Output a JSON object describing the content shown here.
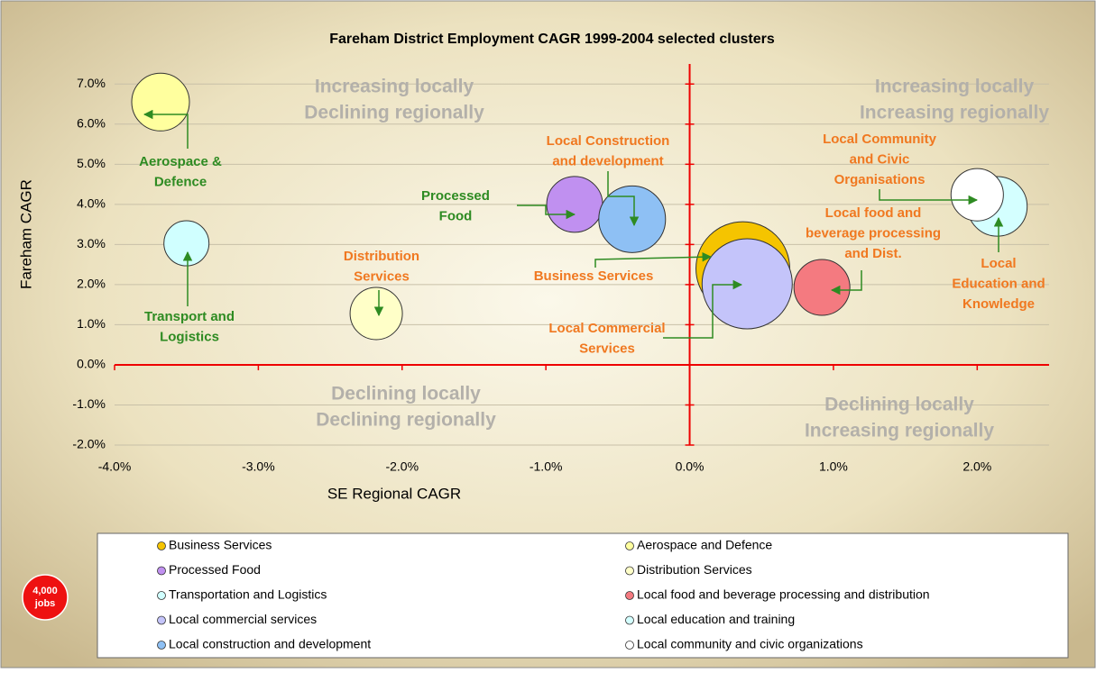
{
  "chart_data": {
    "type": "bubble",
    "title": "Fareham District Employment CAGR 1999-2004 selected clusters",
    "x_label": "SE Regional CAGR",
    "y_label": "Fareham CAGR",
    "xlim": [
      -4,
      2.5
    ],
    "ylim": [
      -2,
      7.5
    ],
    "xticks": [
      {
        "value": -4,
        "label": "-4.0%"
      },
      {
        "value": -3,
        "label": "-3.0%"
      },
      {
        "value": -2,
        "label": "-2.0%"
      },
      {
        "value": -1,
        "label": "-1.0%"
      },
      {
        "value": 0,
        "label": "0.0%"
      },
      {
        "value": 1,
        "label": "1.0%"
      },
      {
        "value": 2,
        "label": "2.0%"
      }
    ],
    "yticks": [
      {
        "value": -2,
        "label": "-2.0%"
      },
      {
        "value": -1,
        "label": "-1.0%"
      },
      {
        "value": 0,
        "label": "0.0%"
      },
      {
        "value": 1,
        "label": "1.0%"
      },
      {
        "value": 2,
        "label": "2.0%"
      },
      {
        "value": 3,
        "label": "3.0%"
      },
      {
        "value": 4,
        "label": "4.0%"
      },
      {
        "value": 5,
        "label": "5.0%"
      },
      {
        "value": 6,
        "label": "6.0%"
      },
      {
        "value": 7,
        "label": "7.0%"
      }
    ],
    "grid": true,
    "size_key": {
      "value": 4000,
      "label": "4,000",
      "unit": "jobs",
      "color": "#ee1111"
    },
    "series": [
      {
        "name": "Business Services",
        "color": "#f5c400",
        "x": [
          0.37
        ],
        "values": [
          2.4
        ],
        "sizes": [
          17300
        ]
      },
      {
        "name": "Aerospace and Defence",
        "color": "#ffff9e",
        "x": [
          -3.68
        ],
        "values": [
          6.55
        ],
        "sizes": [
          6550
        ]
      },
      {
        "name": "Processed Food",
        "color": "#c090f0",
        "x": [
          -0.8
        ],
        "values": [
          4.0
        ],
        "sizes": [
          6150
        ]
      },
      {
        "name": "Distribution Services",
        "color": "#ffffc8",
        "x": [
          -2.18
        ],
        "values": [
          1.28
        ],
        "sizes": [
          5380
        ]
      },
      {
        "name": "Transportation and Logistics",
        "color": "#d0ffff",
        "x": [
          -3.5
        ],
        "values": [
          3.03
        ],
        "sizes": [
          4000
        ]
      },
      {
        "name": "Local food and beverage processing and distribution",
        "color": "#f47a80",
        "x": [
          0.92
        ],
        "values": [
          1.93
        ],
        "sizes": [
          6150
        ]
      },
      {
        "name": "Local commercial services",
        "color": "#c4c4fa",
        "x": [
          0.4
        ],
        "values": [
          2.02
        ],
        "sizes": [
          16000
        ]
      },
      {
        "name": "Local education and training",
        "color": "#d4ffff",
        "x": [
          2.14
        ],
        "values": [
          3.95
        ],
        "sizes": [
          7000
        ]
      },
      {
        "name": "Local construction and development",
        "color": "#8ec0f4",
        "x": [
          -0.4
        ],
        "values": [
          3.63
        ],
        "sizes": [
          8760
        ]
      },
      {
        "name": "Local community and civic organizations",
        "color": "#ffffff",
        "x": [
          2.0
        ],
        "values": [
          4.24
        ],
        "sizes": [
          5400
        ]
      }
    ],
    "quadrant_labels": [
      [
        "Increasing locally",
        "Declining regionally"
      ],
      [
        "Increasing locally",
        "Increasing regionally"
      ],
      [
        "Declining locally",
        "Declining regionally"
      ],
      [
        "Declining locally",
        "Increasing regionally"
      ]
    ],
    "annotations": [
      {
        "lines": [
          "Aerospace &",
          "Defence"
        ],
        "color": "#2e8b22"
      },
      {
        "lines": [
          "Transport and",
          "Logistics"
        ],
        "color": "#2e8b22"
      },
      {
        "lines": [
          "Distribution",
          "Services"
        ],
        "color": "#f07820"
      },
      {
        "lines": [
          "Processed",
          "Food"
        ],
        "color": "#2e8b22"
      },
      {
        "lines": [
          "Local Construction",
          "and development"
        ],
        "color": "#f07820"
      },
      {
        "lines": [
          "Business Services"
        ],
        "color": "#f07820"
      },
      {
        "lines": [
          "Local Commercial",
          "Services"
        ],
        "color": "#f07820"
      },
      {
        "lines": [
          "Local Community",
          "and Civic",
          "Organisations"
        ],
        "color": "#f07820"
      },
      {
        "lines": [
          "Local food and",
          "beverage processing",
          "and Dist."
        ],
        "color": "#f07820"
      },
      {
        "lines": [
          "Local",
          "Education and",
          "Knowledge"
        ],
        "color": "#f07820"
      }
    ]
  }
}
